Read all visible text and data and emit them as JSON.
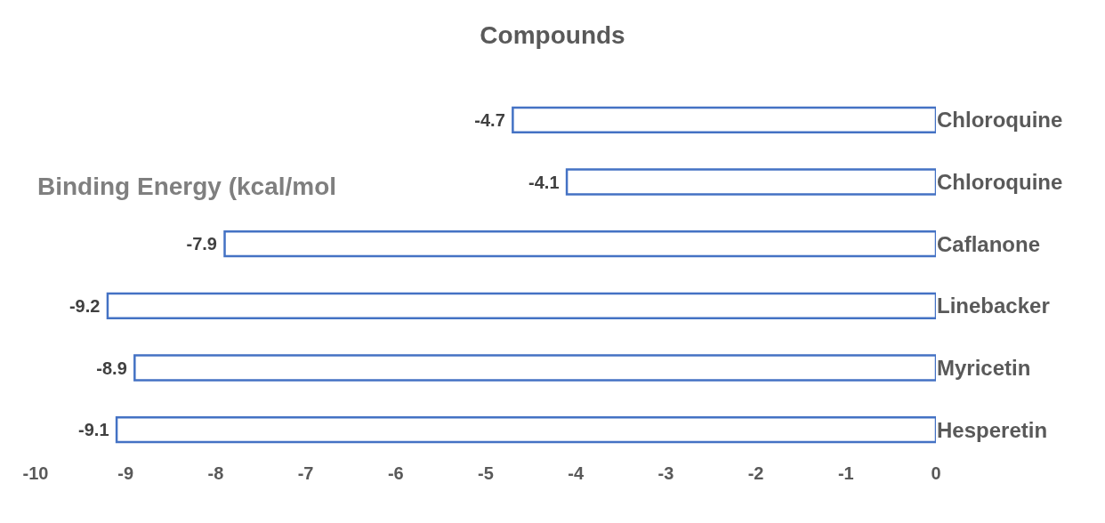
{
  "chart_data": {
    "type": "bar",
    "orientation": "horizontal",
    "title": "Compounds",
    "annotations": [
      "Binding Energy (kcal/mol"
    ],
    "categories": [
      "Chloroquine",
      "Chloroquine",
      "Caflanone",
      "Linebacker",
      "Myricetin",
      "Hesperetin"
    ],
    "values": [
      -4.7,
      -4.1,
      -7.9,
      -9.2,
      -8.9,
      -9.1
    ],
    "color": "#4472c4",
    "xlim": [
      -10,
      0
    ],
    "xticks": [
      -10,
      -9,
      -8,
      -7,
      -6,
      -5,
      -4,
      -3,
      -2,
      -1,
      0
    ],
    "data_labels": true
  }
}
